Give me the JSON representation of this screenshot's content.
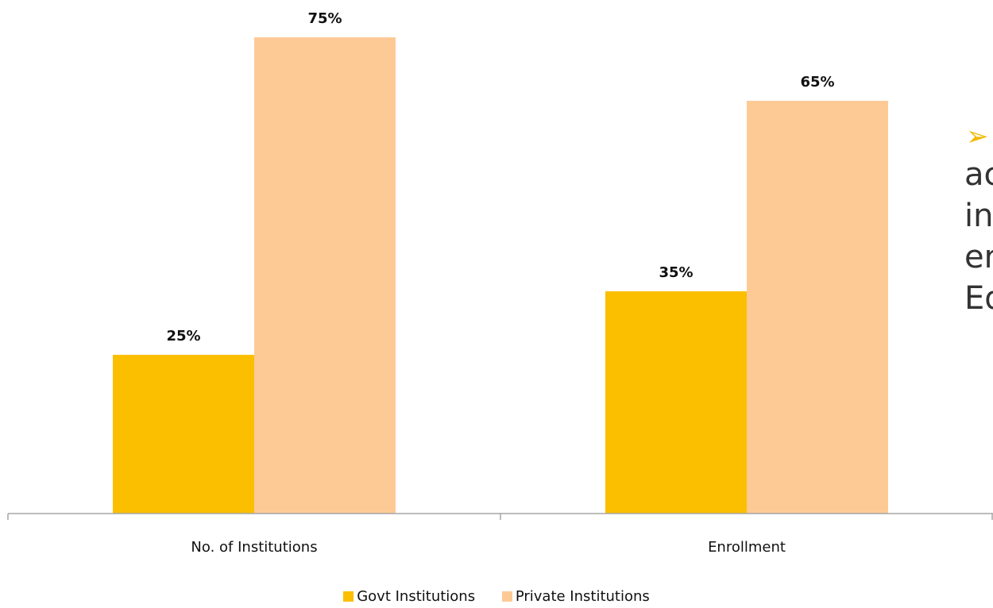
{
  "colors": {
    "govt": "#fbbf00",
    "private": "#fdca96",
    "axis": "#a6a6a6"
  },
  "side_text": {
    "arrow": "➢",
    "lines": [
      "ac",
      "in",
      "er",
      "Ed"
    ]
  },
  "chart_data": {
    "type": "bar",
    "categories": [
      "No. of Institutions",
      "Enrollment"
    ],
    "series": [
      {
        "name": "Govt Institutions",
        "values": [
          25,
          35
        ],
        "labels": [
          "25%",
          "35%"
        ]
      },
      {
        "name": "Private Institutions",
        "values": [
          75,
          65
        ],
        "labels": [
          "75%",
          "65%"
        ]
      }
    ],
    "ylim": [
      0,
      80
    ],
    "grid": false,
    "legend": "bottom",
    "title": "",
    "xlabel": "",
    "ylabel": ""
  }
}
